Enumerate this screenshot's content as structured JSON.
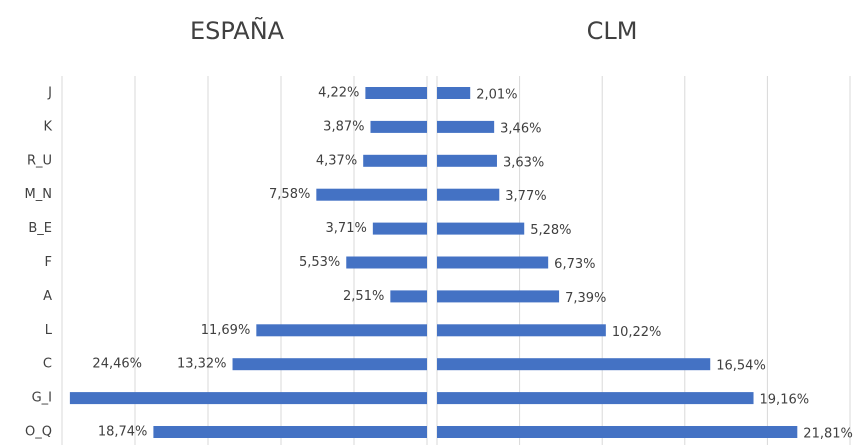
{
  "chart_data": [
    {
      "type": "bar",
      "title": "ESPAÑA",
      "categories": [
        "J",
        "K",
        "R_U",
        "M_N",
        "B_E",
        "F",
        "A",
        "L",
        "C",
        "G_I",
        "O_Q"
      ],
      "values": [
        4.22,
        3.87,
        4.37,
        7.58,
        3.71,
        5.53,
        2.51,
        11.69,
        13.32,
        24.46,
        18.74
      ],
      "value_labels": [
        "4,22%",
        "3,87%",
        "4,37%",
        "7,58%",
        "3,71%",
        "5,53%",
        "2,51%",
        "11,69%",
        "13,32%",
        "24,46%",
        "18,74%"
      ],
      "color": "#4472c4",
      "xlim": [
        25,
        0
      ],
      "xticks": [
        25,
        20,
        15,
        10,
        5,
        0
      ],
      "grid": true
    },
    {
      "type": "bar",
      "title": "CLM",
      "values": [
        2.01,
        3.46,
        3.63,
        3.77,
        5.28,
        6.73,
        7.39,
        10.22,
        16.54,
        19.16,
        21.81
      ],
      "value_labels": [
        "2,01%",
        "3,46%",
        "3,63%",
        "3,77%",
        "5,28%",
        "6,73%",
        "7,39%",
        "10,22%",
        "16,54%",
        "19,16%",
        "21,81%"
      ],
      "color": "#4472c4",
      "xlim": [
        0,
        25
      ],
      "xticks": [
        0,
        5,
        10,
        15,
        20,
        25
      ],
      "grid": true
    }
  ]
}
